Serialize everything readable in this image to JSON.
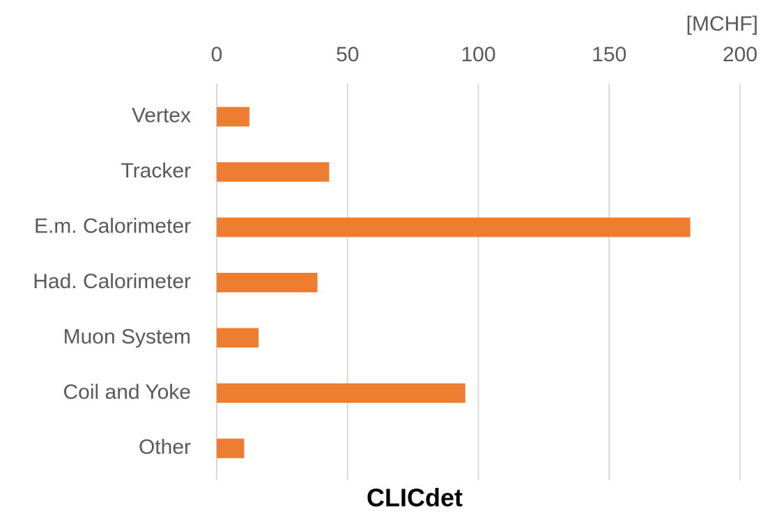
{
  "chart_data": {
    "type": "bar",
    "orientation": "horizontal",
    "title": "CLICdet",
    "x_label": "[MCHF]",
    "categories": [
      "Vertex",
      "Tracker",
      "E.m. Calorimeter",
      "Had. Calorimeter",
      "Muon System",
      "Coil and Yoke",
      "Other"
    ],
    "values": [
      12.5,
      43,
      181,
      38.5,
      16,
      95,
      10.5
    ],
    "color": "#ed7d31",
    "xlim": [
      0,
      200
    ],
    "xticks": [
      0,
      50,
      100,
      150,
      200
    ],
    "grid": true
  }
}
